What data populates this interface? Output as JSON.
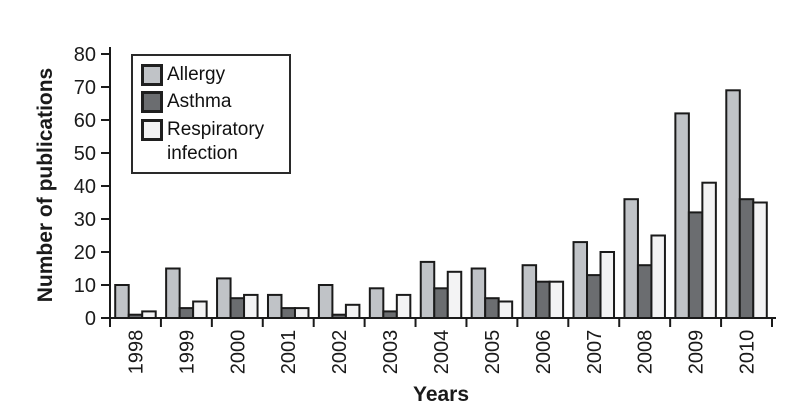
{
  "chart_data": {
    "type": "bar",
    "title": "",
    "xlabel": "Years",
    "ylabel": "Number of publications",
    "categories": [
      "1998",
      "1999",
      "2000",
      "2001",
      "2002",
      "2003",
      "2004",
      "2005",
      "2006",
      "2007",
      "2008",
      "2009",
      "2010"
    ],
    "series": [
      {
        "name": "Allergy",
        "color": "#c0c3c7",
        "values": [
          10,
          15,
          12,
          7,
          10,
          9,
          17,
          15,
          16,
          23,
          36,
          62,
          69
        ]
      },
      {
        "name": "Asthma",
        "color": "#6b6d70",
        "values": [
          1,
          3,
          6,
          3,
          1,
          2,
          9,
          6,
          11,
          13,
          16,
          32,
          36
        ]
      },
      {
        "name": "Respiratory infection",
        "color": "#f3f3f4",
        "values": [
          2,
          5,
          7,
          3,
          4,
          7,
          14,
          5,
          11,
          20,
          25,
          41,
          35
        ]
      }
    ],
    "ylim": [
      0,
      80
    ],
    "ytick_step": 10,
    "grid": false,
    "legend_position": "upper-left-inside",
    "axis_color": "#1a1a1a",
    "bar_border_color": "#1a1a1a",
    "tick_label_color": "#1a1a1a"
  }
}
